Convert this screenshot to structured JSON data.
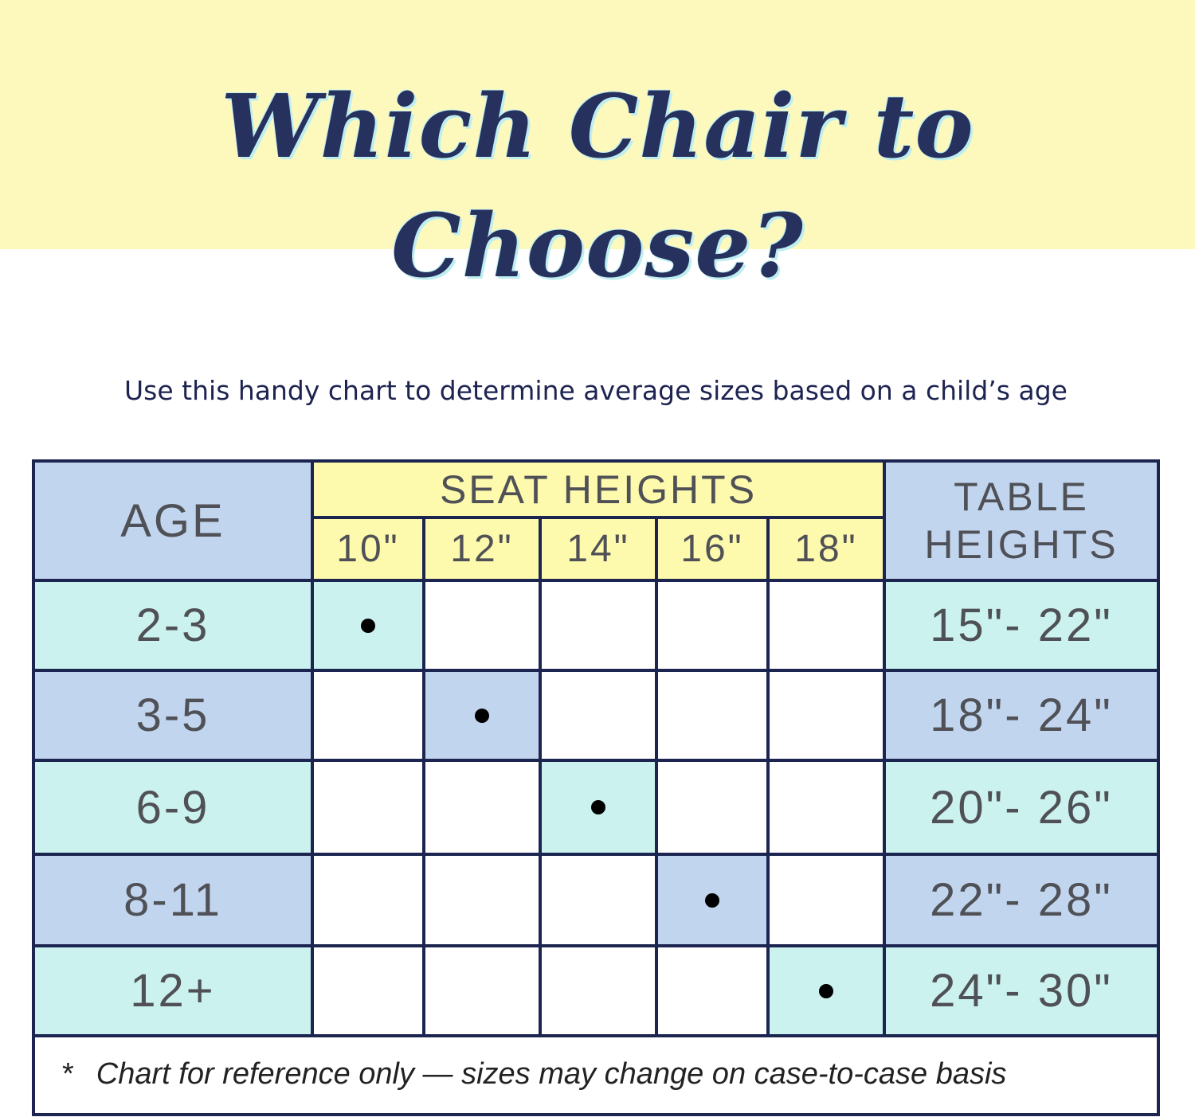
{
  "header": {
    "title": "Which Chair to Choose?",
    "subtitle": "Use this handy chart to determine average sizes based on a child’s age"
  },
  "table": {
    "age_header": "AGE",
    "seat_header": "SEAT HEIGHTS",
    "table_header_line1": "TABLE",
    "table_header_line2": "HEIGHTS",
    "seat_sizes": [
      "10\"",
      "12\"",
      "14\"",
      "16\"",
      "18\""
    ],
    "rows": [
      {
        "age": "2-3",
        "seat_index": 0,
        "table_height": "15\"- 22\""
      },
      {
        "age": "3-5",
        "seat_index": 1,
        "table_height": "18\"- 24\""
      },
      {
        "age": "6-9",
        "seat_index": 2,
        "table_height": "20\"- 26\""
      },
      {
        "age": "8-11",
        "seat_index": 3,
        "table_height": "22\"- 28\""
      },
      {
        "age": "12+",
        "seat_index": 4,
        "table_height": "24\"- 30\""
      }
    ],
    "footnote_marker": "*",
    "footnote": "Chart for reference only — sizes may change on case-to-case basis"
  },
  "colors": {
    "banner": "#fdf9bd",
    "title": "#26315e",
    "border": "#1c2550",
    "mint": "#cbf2ee",
    "blue": "#c2d5ef",
    "yellow": "#fdf9ad",
    "text": "#4f5156"
  }
}
